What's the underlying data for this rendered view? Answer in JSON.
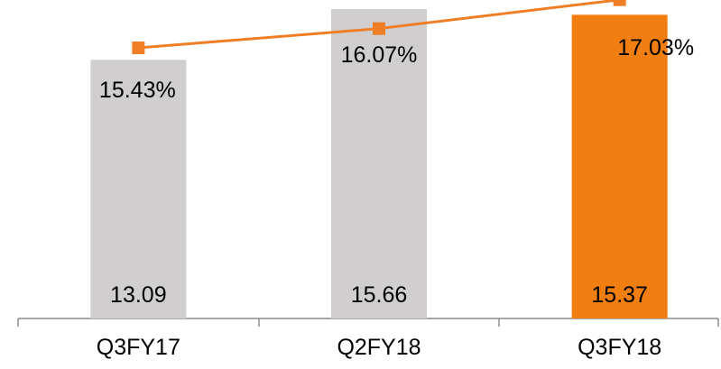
{
  "chart_data": {
    "type": "bar",
    "title": "",
    "categories": [
      "Q3FY17",
      "Q2FY18",
      "Q3FY18"
    ],
    "series": [
      {
        "type": "bar",
        "values": [
          13.09,
          15.66,
          15.37
        ],
        "labels": [
          "13.09",
          "15.66",
          "15.37"
        ],
        "colors": [
          "#d0cece",
          "#d0cece",
          "#f07e10"
        ]
      },
      {
        "type": "line",
        "values": [
          15.43,
          16.07,
          17.03
        ],
        "labels": [
          "15.43%",
          "16.07%",
          "17.03%"
        ],
        "color": "#f07e26",
        "marker": "square"
      }
    ],
    "grid": false,
    "legend": "none"
  }
}
